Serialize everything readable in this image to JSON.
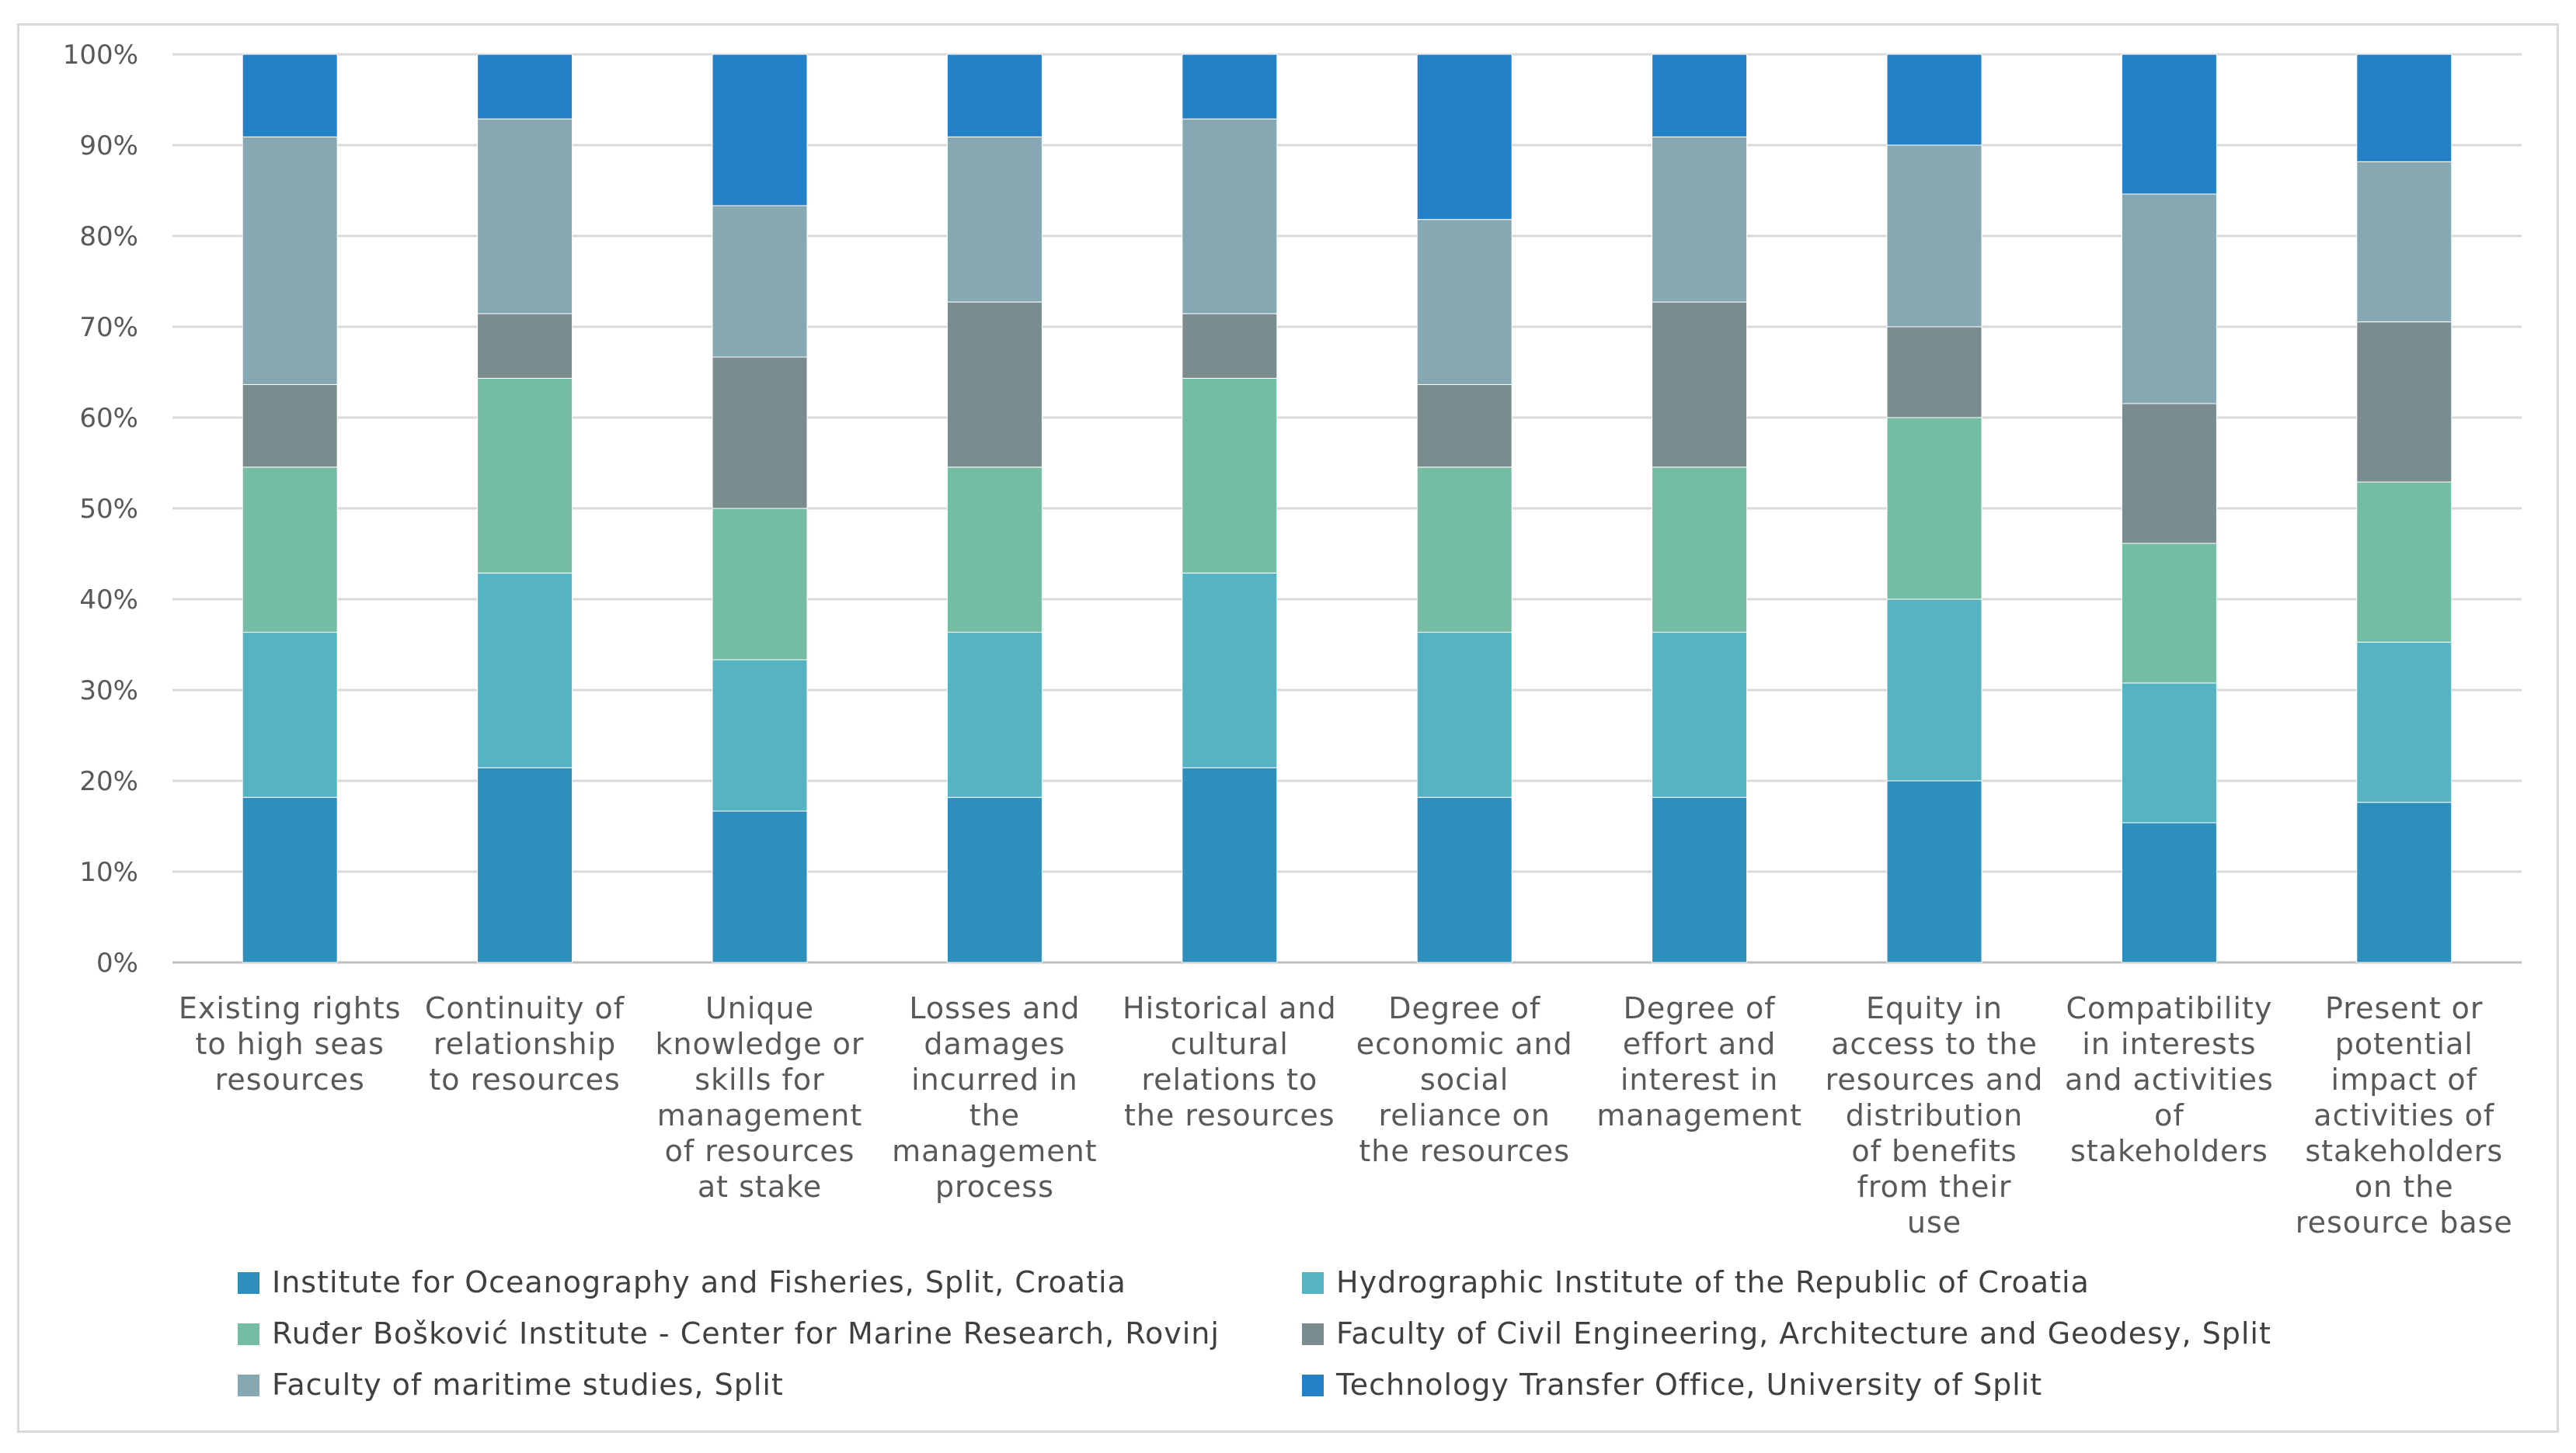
{
  "chart_data": {
    "type": "bar",
    "stacked": true,
    "percent_stacked": true,
    "title": "",
    "xlabel": "",
    "ylabel": "",
    "ylim": [
      0,
      100
    ],
    "y_ticks": [
      "0%",
      "10%",
      "20%",
      "30%",
      "40%",
      "50%",
      "60%",
      "70%",
      "80%",
      "90%",
      "100%"
    ],
    "grid": true,
    "legend_position": "bottom",
    "categories": [
      "Existing rights to high seas resources",
      "Continuity of relationship to resources",
      "Unique knowledge or skills for management of resources at stake",
      "Losses and damages incurred in the management process",
      "Historical and cultural relations to the resources",
      "Degree of economic and social reliance on the resources",
      "Degree of effort and interest in management",
      "Equity in access to the resources and distribution of benefits from their use",
      "Compatibility in interests and activities of stakeholders",
      "Present or potential impact of activities of stakeholders on the resource base"
    ],
    "category_lines": [
      [
        "Existing rights",
        "to high seas",
        "resources"
      ],
      [
        "Continuity of",
        "relationship",
        "to resources"
      ],
      [
        "Unique",
        "knowledge or",
        "skills for",
        "management",
        "of resources",
        "at stake"
      ],
      [
        "Losses and",
        "damages",
        "incurred in",
        "the",
        "management",
        "process"
      ],
      [
        "Historical and",
        "cultural",
        "relations to",
        "the resources"
      ],
      [
        "Degree of",
        "economic and",
        "social",
        "reliance on",
        "the resources"
      ],
      [
        "Degree of",
        "effort and",
        "interest in",
        "management"
      ],
      [
        "Equity in",
        "access to the",
        "resources and",
        "distribution",
        "of benefits",
        "from their",
        "use"
      ],
      [
        "Compatibility",
        "in interests",
        "and activities",
        "of",
        "stakeholders"
      ],
      [
        "Present or",
        "potential",
        "impact of",
        "activities of",
        "stakeholders",
        "on the",
        "resource base"
      ]
    ],
    "series": [
      {
        "name": "Institute for Oceanography and Fisheries, Split,  Croatia",
        "color": "#2e8fbd",
        "values": [
          18.2,
          21.4,
          16.7,
          18.2,
          21.4,
          18.2,
          18.2,
          20.0,
          15.4,
          17.6
        ]
      },
      {
        "name": "Hydrographic Institute of the Republic of Croatia",
        "color": "#56b4c2",
        "values": [
          18.2,
          21.4,
          16.7,
          18.2,
          21.4,
          18.2,
          18.2,
          20.0,
          15.4,
          17.6
        ]
      },
      {
        "name": "Ruđer Bošković Institute - Center for Marine Research, Rovinj",
        "color": "#74bca2",
        "values": [
          18.2,
          21.4,
          16.7,
          18.2,
          21.4,
          18.2,
          18.2,
          20.0,
          15.4,
          17.6
        ]
      },
      {
        "name": "Faculty of Civil Engineering, Architecture and Geodesy, Split",
        "color": "#7a8c8e",
        "values": [
          9.1,
          7.1,
          16.7,
          18.2,
          7.1,
          9.1,
          18.2,
          10.0,
          15.4,
          17.6
        ]
      },
      {
        "name": "Faculty of maritime studies, Split",
        "color": "#86a8b3",
        "values": [
          27.3,
          21.4,
          16.7,
          18.2,
          21.4,
          18.2,
          18.2,
          20.0,
          23.1,
          17.6
        ]
      },
      {
        "name": "Technology Transfer Office,  University of Split",
        "color": "#2581c7",
        "values": [
          9.1,
          7.1,
          16.7,
          9.1,
          7.1,
          18.2,
          9.1,
          10.0,
          15.4,
          11.8
        ]
      }
    ]
  }
}
